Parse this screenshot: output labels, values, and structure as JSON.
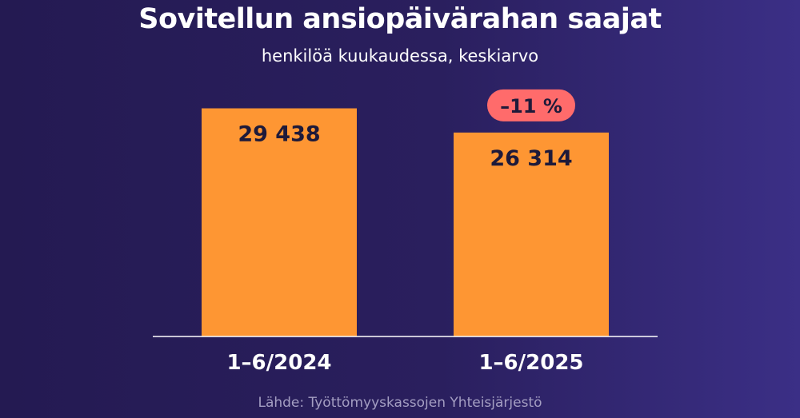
{
  "title": "Sovitellun ansiopäivärahan saajat",
  "subtitle": "henkilöä kuukaudessa, keskiarvo",
  "source": "Lähde: Työttömyyskassojen Yhteisjärjestö",
  "colors": {
    "bar": "#fe9633",
    "badge": "#ff6b6b",
    "value_text": "#1e1a3a",
    "axis": "#ffffff"
  },
  "chart_data": {
    "type": "bar",
    "title": "Sovitellun ansiopäivärahan saajat",
    "subtitle": "henkilöä kuukaudessa, keskiarvo",
    "categories": [
      "1–6/2024",
      "1–6/2025"
    ],
    "values": [
      29438,
      26314
    ],
    "value_labels": [
      "29 438",
      "26 314"
    ],
    "annotations": [
      {
        "category": "1–6/2025",
        "text": "–11 %"
      }
    ],
    "xlabel": "",
    "ylabel": "",
    "ylim": [
      0,
      33000
    ],
    "grid": false,
    "legend": "none"
  }
}
